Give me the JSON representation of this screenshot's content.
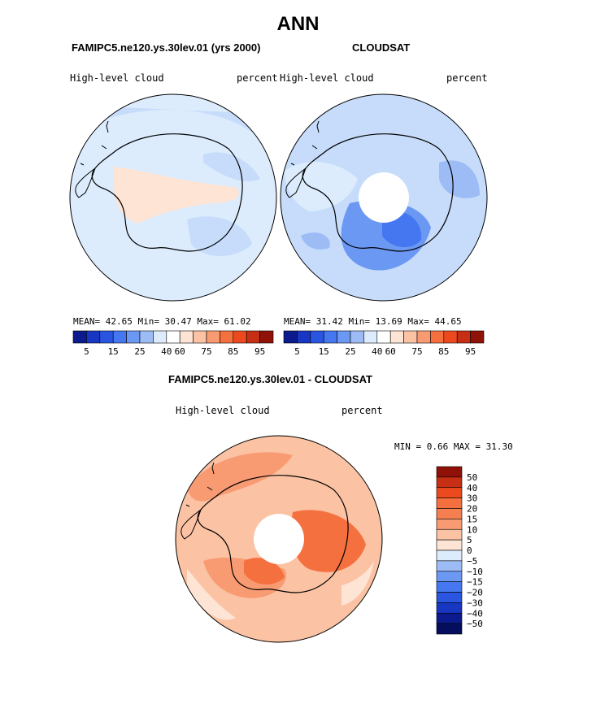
{
  "main_title": "ANN",
  "colors": {
    "blues": [
      "#0b1a8c",
      "#1737c2",
      "#2a55e0",
      "#4477f0",
      "#6b98f3",
      "#9dbcf6",
      "#dcecfd"
    ],
    "reds": [
      "#fde4d4",
      "#fbc2a3",
      "#f89b73",
      "#f5703f",
      "#ec4a1e",
      "#c72f14",
      "#8f1108"
    ],
    "coast": "#000000"
  },
  "panels": [
    {
      "title": "FAMIPC5.ne120.ys.30lev.01 (yrs 2000)",
      "var_label": "High-level cloud",
      "units_label": "percent",
      "stats": {
        "mean_label": "MEAN=",
        "mean": "42.65",
        "min_label": "Min=",
        "min": "30.47",
        "max_label": "Max=",
        "max": "61.02"
      },
      "colorbar_labels": [
        "5",
        "15",
        "25",
        "40",
        "60",
        "75",
        "85",
        "95"
      ]
    },
    {
      "title": "CLOUDSAT",
      "var_label": "High-level cloud",
      "units_label": "percent",
      "stats": {
        "mean_label": "MEAN=",
        "mean": "31.42",
        "min_label": "Min=",
        "min": "13.69",
        "max_label": "Max=",
        "max": "44.65"
      },
      "colorbar_labels": [
        "5",
        "15",
        "25",
        "40",
        "60",
        "75",
        "85",
        "95"
      ]
    }
  ],
  "diff_panel": {
    "title": "FAMIPC5.ne120.ys.30lev.01 - CLOUDSAT",
    "var_label": "High-level cloud",
    "units_label": "percent",
    "min_label": "MIN =",
    "min": "0.66",
    "max_label": "MAX =",
    "max": "31.30",
    "colorbar_labels": [
      "50",
      "40",
      "30",
      "20",
      "15",
      "10",
      "5",
      "0",
      "−5",
      "−10",
      "−15",
      "−20",
      "−30",
      "−40",
      "−50"
    ]
  },
  "chart_data": [
    {
      "type": "heatmap",
      "projection": "south polar stereographic",
      "title": "FAMIPC5.ne120.ys.30lev.01 (yrs 2000)",
      "variable": "High-level cloud",
      "units": "percent",
      "mean": 42.65,
      "min": 30.47,
      "max": 61.02,
      "color_levels": [
        5,
        10,
        15,
        20,
        25,
        30,
        40,
        50,
        60,
        70,
        75,
        80,
        85,
        90,
        95
      ],
      "colorbar_tick_labels": [
        "5",
        "15",
        "25",
        "40",
        "60",
        "75",
        "85",
        "95"
      ]
    },
    {
      "type": "heatmap",
      "projection": "south polar stereographic",
      "title": "CLOUDSAT",
      "variable": "High-level cloud",
      "units": "percent",
      "mean": 31.42,
      "min": 13.69,
      "max": 44.65,
      "color_levels": [
        5,
        10,
        15,
        20,
        25,
        30,
        40,
        50,
        60,
        70,
        75,
        80,
        85,
        90,
        95
      ],
      "colorbar_tick_labels": [
        "5",
        "15",
        "25",
        "40",
        "60",
        "75",
        "85",
        "95"
      ]
    },
    {
      "type": "heatmap",
      "projection": "south polar stereographic",
      "title": "FAMIPC5.ne120.ys.30lev.01 - CLOUDSAT",
      "variable": "High-level cloud",
      "units": "percent",
      "min": 0.66,
      "max": 31.3,
      "color_levels": [
        -50,
        -40,
        -30,
        -20,
        -15,
        -10,
        -5,
        0,
        5,
        10,
        15,
        20,
        30,
        40,
        50
      ],
      "colorbar_tick_labels": [
        "50",
        "40",
        "30",
        "20",
        "15",
        "10",
        "5",
        "0",
        "-5",
        "-10",
        "-15",
        "-20",
        "-30",
        "-40",
        "-50"
      ]
    }
  ]
}
